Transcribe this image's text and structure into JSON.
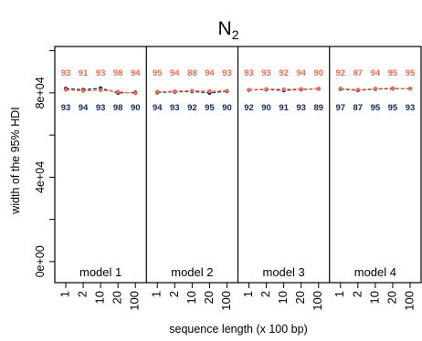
{
  "chart_data": {
    "type": "line",
    "title_main": "N",
    "title_sub": "2",
    "xlabel": "sequence length (x 100 bp)",
    "ylabel": "width of the 95% HDI",
    "ylim": [
      -10000,
      102000
    ],
    "y_ticks": [
      {
        "value": 0,
        "label": "0e+00"
      },
      {
        "value": 40000,
        "label": "4e+04"
      },
      {
        "value": 80000,
        "label": "8e+04"
      }
    ],
    "y_minor_ticks": [
      20000,
      60000,
      100000
    ],
    "categories": [
      "1",
      "2",
      "10",
      "20",
      "100"
    ],
    "colors": {
      "series_a": "#f26b4f",
      "series_b": "#0f2a5c",
      "frame": "#000000"
    },
    "panels": [
      {
        "label": "model 1",
        "series_a": {
          "values": [
            81500,
            81000,
            81300,
            80500,
            79800
          ],
          "labels": [
            "93",
            "91",
            "93",
            "98",
            "94"
          ]
        },
        "series_b": {
          "values": [
            82000,
            81500,
            82200,
            80000,
            80200
          ],
          "labels": [
            "93",
            "94",
            "93",
            "98",
            "90"
          ]
        }
      },
      {
        "label": "model 2",
        "series_a": {
          "values": [
            80500,
            80800,
            81000,
            80800,
            81000
          ],
          "labels": [
            "95",
            "94",
            "88",
            "94",
            "93"
          ]
        },
        "series_b": {
          "values": [
            80200,
            80500,
            80700,
            80000,
            80800
          ],
          "labels": [
            "94",
            "93",
            "92",
            "95",
            "90"
          ]
        }
      },
      {
        "label": "model 3",
        "series_a": {
          "values": [
            81500,
            81800,
            81700,
            81800,
            82000
          ],
          "labels": [
            "93",
            "93",
            "92",
            "94",
            "90"
          ]
        },
        "series_b": {
          "values": [
            81400,
            81600,
            81200,
            81600,
            81900
          ],
          "labels": [
            "92",
            "90",
            "91",
            "93",
            "89"
          ]
        }
      },
      {
        "label": "model 4",
        "series_a": {
          "values": [
            82000,
            81500,
            82000,
            82200,
            82000
          ],
          "labels": [
            "92",
            "87",
            "94",
            "95",
            "95"
          ]
        },
        "series_b": {
          "values": [
            81800,
            81200,
            81800,
            82000,
            82000
          ],
          "labels": [
            "97",
            "87",
            "95",
            "95",
            "93"
          ]
        }
      }
    ]
  }
}
